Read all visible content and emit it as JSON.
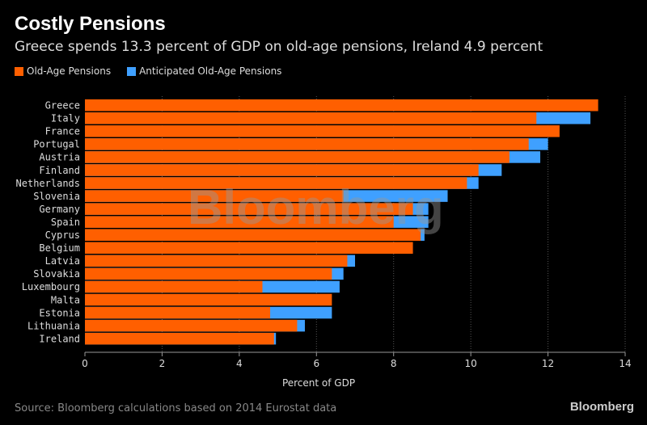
{
  "title": "Costly Pensions",
  "subtitle": "Greece spends 13.3 percent of GDP on old-age pensions, Ireland 4.9 percent",
  "source": "Source: Bloomberg calculations based on 2014 Eurostat data",
  "logo": "Bloomberg",
  "watermark": "Bloomberg",
  "colors": {
    "background": "#000000",
    "old_age": "#ff5f00",
    "anticipated": "#3fa0ff"
  },
  "chart_data": {
    "type": "bar",
    "orientation": "horizontal",
    "stacked": false,
    "xlabel": "Percent of GDP",
    "xlim": [
      0,
      14
    ],
    "xticks": [
      0,
      2,
      4,
      6,
      8,
      10,
      12,
      14
    ],
    "grid": "vertical dotted",
    "legend": "top-left",
    "categories": [
      "Greece",
      "Italy",
      "France",
      "Portugal",
      "Austria",
      "Finland",
      "Netherlands",
      "Slovenia",
      "Germany",
      "Spain",
      "Cyprus",
      "Belgium",
      "Latvia",
      "Slovakia",
      "Luxembourg",
      "Malta",
      "Estonia",
      "Lithuania",
      "Ireland"
    ],
    "series": [
      {
        "name": "Old-Age Pensions",
        "color": "#ff5f00",
        "values": [
          13.3,
          11.7,
          12.3,
          11.5,
          11.0,
          10.2,
          9.9,
          6.7,
          8.5,
          8.0,
          8.7,
          8.5,
          6.8,
          6.4,
          4.6,
          6.4,
          4.8,
          5.5,
          4.9
        ]
      },
      {
        "name": "Anticipated Old-Age Pensions",
        "color": "#3fa0ff",
        "values": [
          null,
          13.1,
          null,
          12.0,
          11.8,
          10.8,
          10.2,
          9.4,
          8.9,
          8.9,
          8.8,
          null,
          7.0,
          6.7,
          6.6,
          null,
          6.4,
          5.7,
          4.95
        ]
      }
    ]
  }
}
